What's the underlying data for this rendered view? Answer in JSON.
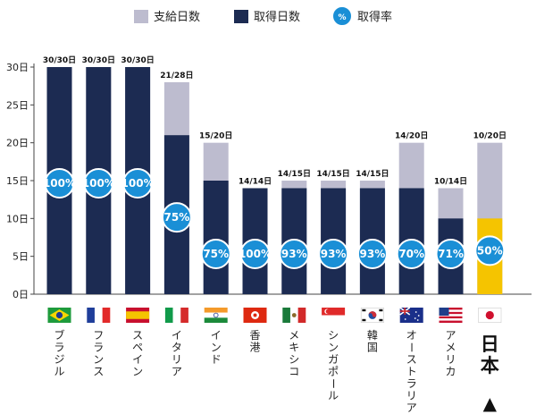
{
  "chart_data": {
    "type": "bar",
    "ylim": [
      0,
      30
    ],
    "yticks": [
      {
        "value": 0,
        "label": "0日"
      },
      {
        "value": 5,
        "label": "5日"
      },
      {
        "value": 10,
        "label": "10日"
      },
      {
        "value": 15,
        "label": "15日"
      },
      {
        "value": 20,
        "label": "20日"
      },
      {
        "value": 25,
        "label": "25日"
      },
      {
        "value": 30,
        "label": "30日"
      }
    ],
    "legend": {
      "placement": "top-right",
      "entries": [
        {
          "key": "granted",
          "label": "支給日数"
        },
        {
          "key": "taken",
          "label": "取得日数"
        },
        {
          "key": "rate",
          "label": "取得率",
          "symbol": "%"
        }
      ]
    },
    "colors": {
      "granted": "#bdbccf",
      "taken": "#1c2b52",
      "rate_circle": "#1a8fd6",
      "highlight_taken": "#f5c400",
      "axis": "#444444"
    },
    "categories": [
      "ブラジル",
      "フランス",
      "スペイン",
      "イタリア",
      "インド",
      "香港",
      "メキシコ",
      "シンガポール",
      "韓国",
      "オーストラリア",
      "アメリカ",
      "日本"
    ],
    "flags": [
      "brazil-flag",
      "france-flag",
      "spain-flag",
      "italy-flag",
      "india-flag",
      "hongkong-flag",
      "mexico-flag",
      "singapore-flag",
      "korea-flag",
      "australia-flag",
      "usa-flag",
      "japan-flag"
    ],
    "series": [
      {
        "key": "granted",
        "name": "支給日数",
        "values": [
          30,
          30,
          30,
          28,
          20,
          14,
          15,
          15,
          15,
          20,
          14,
          20
        ]
      },
      {
        "key": "taken",
        "name": "取得日数",
        "values": [
          30,
          30,
          30,
          21,
          15,
          14,
          14,
          14,
          14,
          14,
          10,
          10
        ]
      },
      {
        "key": "rate",
        "name": "取得率",
        "values": [
          100,
          100,
          100,
          75,
          75,
          100,
          93,
          93,
          93,
          70,
          71,
          50
        ]
      }
    ],
    "bar_labels": [
      "30/30日",
      "30/30日",
      "30/30日",
      "21/28日",
      "15/20日",
      "14/14日",
      "14/15日",
      "14/15日",
      "14/15日",
      "14/20日",
      "10/14日",
      "10/20日"
    ],
    "rate_labels": [
      "100%",
      "100%",
      "100%",
      "75%",
      "75%",
      "100%",
      "93%",
      "93%",
      "93%",
      "70%",
      "71%",
      "50%"
    ],
    "highlight_category": "日本",
    "highlight_marker": "▲"
  }
}
